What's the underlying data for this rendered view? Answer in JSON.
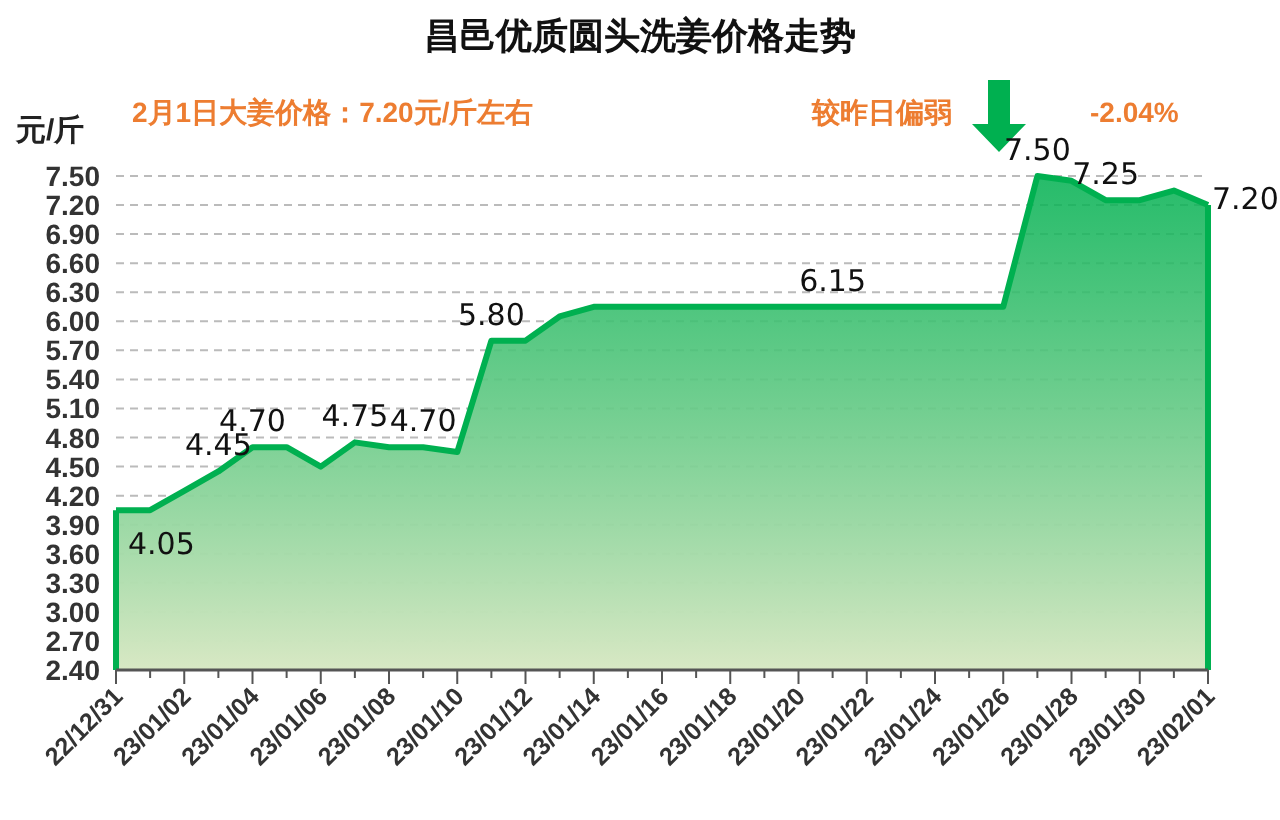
{
  "chart_data": {
    "type": "area",
    "title": "昌邑优质圆头洗姜价格走势",
    "ylabel": "元/斤",
    "annotations": [
      "2月1日大姜价格：7.20元/斤左右",
      "较昨日偏弱",
      "-2.04%"
    ],
    "categories": [
      "22/12/31",
      null,
      "23/01/02",
      null,
      "23/01/04",
      null,
      "23/01/06",
      null,
      "23/01/08",
      null,
      "23/01/10",
      null,
      "23/01/12",
      null,
      "23/01/14",
      null,
      "23/01/16",
      null,
      "23/01/18",
      null,
      "23/01/20",
      null,
      "23/01/22",
      null,
      "23/01/24",
      null,
      "23/01/26",
      null,
      "23/01/28",
      null,
      "23/01/30",
      null,
      "23/02/01"
    ],
    "series": [
      {
        "color": "#00b050",
        "values": [
          4.05,
          4.05,
          4.25,
          4.45,
          4.7,
          4.7,
          4.5,
          4.75,
          4.7,
          4.7,
          4.65,
          5.8,
          5.8,
          6.05,
          6.15,
          6.15,
          6.15,
          6.15,
          6.15,
          6.15,
          6.15,
          6.15,
          6.15,
          6.15,
          6.15,
          6.15,
          6.15,
          7.5,
          7.45,
          7.25,
          7.25,
          7.35,
          7.2
        ],
        "value_labels": [
          "4.05",
          null,
          null,
          "4.45",
          "4.70",
          null,
          null,
          "4.75",
          null,
          "4.70",
          null,
          "5.80",
          null,
          null,
          null,
          null,
          null,
          null,
          null,
          null,
          null,
          "6.15",
          null,
          null,
          null,
          null,
          null,
          "7.50",
          null,
          "7.25",
          null,
          null,
          "7.20"
        ]
      }
    ],
    "ylim": [
      2.4,
      7.5
    ],
    "yticks": [
      {
        "value": 2.4,
        "label": "2.40"
      },
      {
        "value": 2.7,
        "label": "2.70"
      },
      {
        "value": 3.0,
        "label": "3.00"
      },
      {
        "value": 3.3,
        "label": "3.30"
      },
      {
        "value": 3.6,
        "label": "3.60"
      },
      {
        "value": 3.9,
        "label": "3.90"
      },
      {
        "value": 4.2,
        "label": "4.20"
      },
      {
        "value": 4.5,
        "label": "4.50"
      },
      {
        "value": 4.8,
        "label": "4.80"
      },
      {
        "value": 5.1,
        "label": "5.10"
      },
      {
        "value": 5.4,
        "label": "5.40"
      },
      {
        "value": 5.7,
        "label": "5.70"
      },
      {
        "value": 6.0,
        "label": "6.00"
      },
      {
        "value": 6.3,
        "label": "6.30"
      },
      {
        "value": 6.6,
        "label": "6.60"
      },
      {
        "value": 6.9,
        "label": "6.90"
      },
      {
        "value": 7.2,
        "label": "7.20"
      },
      {
        "value": 7.5,
        "label": "7.50"
      }
    ],
    "grid": "y",
    "marker": "none",
    "line_style": "solid"
  }
}
